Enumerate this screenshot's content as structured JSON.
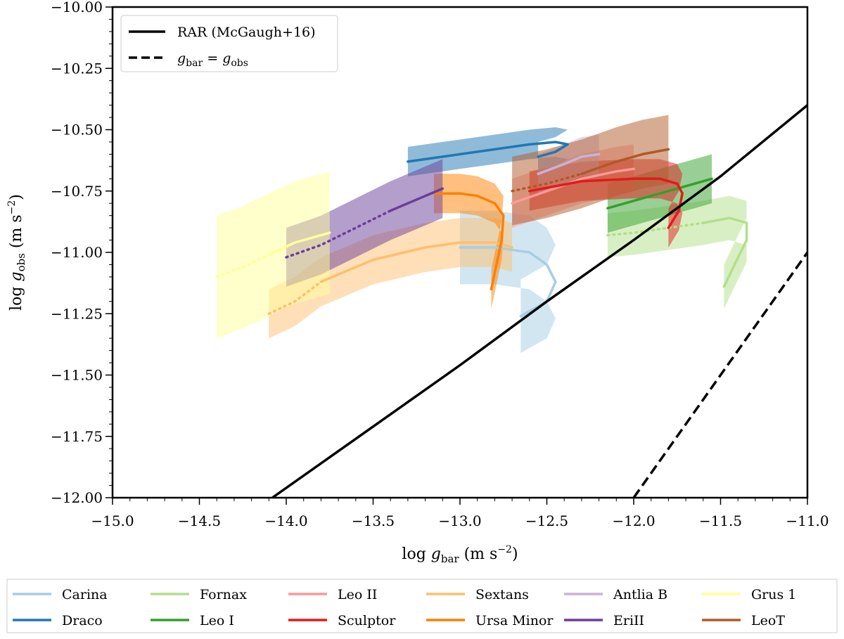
{
  "chart_data": {
    "type": "line",
    "xlabel": "log g_bar (m s^-2)",
    "ylabel": "log g_obs (m s^-2)",
    "xlim": [
      -15.0,
      -11.0
    ],
    "ylim": [
      -12.0,
      -10.0
    ],
    "xticks": [
      "-15.0",
      "-14.5",
      "-14.0",
      "-13.5",
      "-13.0",
      "-12.5",
      "-12.0",
      "-11.5",
      "-11.0"
    ],
    "yticks": [
      "-10.00",
      "-10.25",
      "-10.50",
      "-10.75",
      "-11.00",
      "-11.25",
      "-11.50",
      "-11.75",
      "-12.00"
    ],
    "grid": false,
    "reference_lines": [
      {
        "name": "RAR (McGaugh+16)",
        "style": "solid",
        "color": "#000000",
        "points": [
          [
            -14.08,
            -12.0
          ],
          [
            -13.5,
            -11.71
          ],
          [
            -13.0,
            -11.46
          ],
          [
            -12.5,
            -11.2
          ],
          [
            -12.0,
            -10.95
          ],
          [
            -11.5,
            -10.69
          ],
          [
            -11.0,
            -10.4
          ]
        ]
      },
      {
        "name": "g_bar = g_obs",
        "style": "dashed",
        "color": "#000000",
        "points": [
          [
            -12.0,
            -12.0
          ],
          [
            -11.0,
            -11.0
          ]
        ]
      }
    ],
    "series": [
      {
        "name": "Carina",
        "color": "#a6cee3",
        "points": [
          [
            -13.0,
            -10.98
          ],
          [
            -12.8,
            -10.98
          ],
          [
            -12.6,
            -11.0
          ],
          [
            -12.5,
            -11.05
          ],
          [
            -12.45,
            -11.12
          ],
          [
            -12.5,
            -11.2
          ],
          [
            -12.65,
            -11.26
          ]
        ],
        "band": 0.15,
        "dotted_until": 0
      },
      {
        "name": "Draco",
        "color": "#1f78b4",
        "points": [
          [
            -13.3,
            -10.63
          ],
          [
            -13.0,
            -10.6
          ],
          [
            -12.8,
            -10.58
          ],
          [
            -12.6,
            -10.56
          ],
          [
            -12.45,
            -10.55
          ],
          [
            -12.38,
            -10.56
          ],
          [
            -12.45,
            -10.59
          ],
          [
            -12.55,
            -10.61
          ]
        ],
        "band": 0.06,
        "dotted_until": 0
      },
      {
        "name": "Fornax",
        "color": "#b2df8a",
        "points": [
          [
            -12.15,
            -10.93
          ],
          [
            -12.0,
            -10.92
          ],
          [
            -11.8,
            -10.9
          ],
          [
            -11.6,
            -10.88
          ],
          [
            -11.45,
            -10.86
          ],
          [
            -11.35,
            -10.88
          ],
          [
            -11.35,
            -10.95
          ],
          [
            -11.42,
            -11.05
          ],
          [
            -11.48,
            -11.14
          ]
        ],
        "band": 0.09,
        "dotted_until": 3
      },
      {
        "name": "Leo I",
        "color": "#33a02c",
        "points": [
          [
            -12.15,
            -10.82
          ],
          [
            -12.0,
            -10.79
          ],
          [
            -11.8,
            -10.75
          ],
          [
            -11.6,
            -10.71
          ],
          [
            -11.55,
            -10.7
          ]
        ],
        "band": 0.1,
        "dotted_until": 0
      },
      {
        "name": "Leo II",
        "color": "#fb9a99",
        "points": [
          [
            -12.7,
            -10.8
          ],
          [
            -12.5,
            -10.75
          ],
          [
            -12.3,
            -10.7
          ],
          [
            -12.1,
            -10.67
          ],
          [
            -12.0,
            -10.66
          ]
        ],
        "band": 0.1,
        "dotted_until": 0
      },
      {
        "name": "Sculptor",
        "color": "#e31a1c",
        "points": [
          [
            -12.6,
            -10.75
          ],
          [
            -12.3,
            -10.71
          ],
          [
            -12.0,
            -10.7
          ],
          [
            -11.85,
            -10.7
          ],
          [
            -11.75,
            -10.72
          ],
          [
            -11.72,
            -10.76
          ],
          [
            -11.74,
            -10.83
          ],
          [
            -11.8,
            -10.9
          ]
        ],
        "band": 0.08,
        "dotted_until": 0
      },
      {
        "name": "Sextans",
        "color": "#fdbf6f",
        "points": [
          [
            -14.1,
            -11.25
          ],
          [
            -13.95,
            -11.2
          ],
          [
            -13.8,
            -11.12
          ],
          [
            -13.5,
            -11.03
          ],
          [
            -13.2,
            -10.98
          ],
          [
            -13.0,
            -10.96
          ],
          [
            -12.8,
            -10.96
          ],
          [
            -12.7,
            -10.98
          ]
        ],
        "band": 0.1,
        "dotted_until": 2
      },
      {
        "name": "Ursa Minor",
        "color": "#ff7f00",
        "points": [
          [
            -13.15,
            -10.76
          ],
          [
            -13.0,
            -10.76
          ],
          [
            -12.9,
            -10.77
          ],
          [
            -12.8,
            -10.8
          ],
          [
            -12.75,
            -10.85
          ],
          [
            -12.76,
            -10.95
          ],
          [
            -12.79,
            -11.05
          ],
          [
            -12.82,
            -11.15
          ]
        ],
        "band": 0.08,
        "dotted_until": 0
      },
      {
        "name": "Antlia B",
        "color": "#cab2d6",
        "points": [
          [
            -12.55,
            -10.68
          ],
          [
            -12.4,
            -10.64
          ],
          [
            -12.3,
            -10.61
          ],
          [
            -12.2,
            -10.6
          ]
        ],
        "band": 0.08,
        "dotted_until": 0
      },
      {
        "name": "EriII",
        "color": "#6a3d9a",
        "points": [
          [
            -14.0,
            -11.02
          ],
          [
            -13.8,
            -10.97
          ],
          [
            -13.6,
            -10.9
          ],
          [
            -13.4,
            -10.83
          ],
          [
            -13.2,
            -10.77
          ],
          [
            -13.1,
            -10.74
          ]
        ],
        "band": 0.12,
        "dotted_until": 3
      },
      {
        "name": "Grus 1",
        "color": "#ffff99",
        "points": [
          [
            -14.4,
            -11.1
          ],
          [
            -14.25,
            -11.06
          ],
          [
            -14.1,
            -11.01
          ],
          [
            -13.95,
            -10.96
          ],
          [
            -13.75,
            -10.92
          ]
        ],
        "band": 0.25,
        "dotted_until": 2
      },
      {
        "name": "LeoT",
        "color": "#b15928",
        "points": [
          [
            -12.7,
            -10.75
          ],
          [
            -12.5,
            -10.72
          ],
          [
            -12.3,
            -10.68
          ],
          [
            -12.1,
            -10.63
          ],
          [
            -11.95,
            -10.6
          ],
          [
            -11.8,
            -10.58
          ]
        ],
        "band": 0.14,
        "dotted_until": 2
      }
    ]
  }
}
